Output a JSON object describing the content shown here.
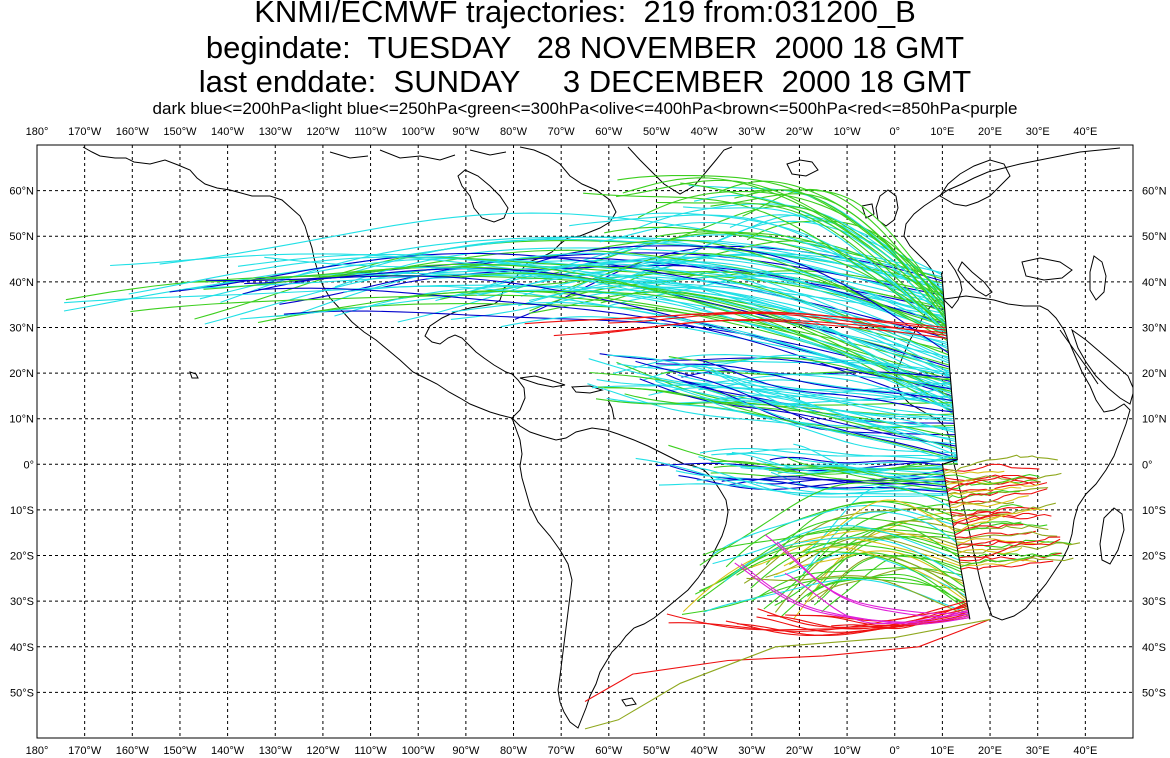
{
  "title": {
    "line1": "KNMI/ECMWF trajectories:  219 from:031200_B",
    "line2": "begindate:  TUESDAY   28 NOVEMBER  2000 18 GMT",
    "line3": "last enddate:  SUNDAY     3 DECEMBER  2000 18 GMT"
  },
  "legend": "dark blue<=200hPa<light blue<=250hPa<green<=300hPa<olive<=400hPa<brown<=500hPa<red<=850hPa<purple",
  "colors": {
    "dark_blue": "#0000cc",
    "light_blue": "#22e0e6",
    "green": "#3ccf1e",
    "olive": "#8fa81e",
    "brown": "#d9c21a",
    "red": "#ee1111",
    "purple": "#e020d8",
    "grid": "#000000",
    "coast": "#000000"
  },
  "map": {
    "projection": "cylindrical",
    "lon_range": [
      -180,
      50
    ],
    "lat_range": [
      -60,
      70
    ],
    "grid_step_deg": 10,
    "lon_labels": [
      "180°",
      "170°W",
      "160°W",
      "150°W",
      "140°W",
      "130°W",
      "120°W",
      "110°W",
      "100°W",
      "90°W",
      "80°W",
      "70°W",
      "60°W",
      "50°W",
      "40°W",
      "30°W",
      "20°W",
      "10°W",
      "0°",
      "10°E",
      "20°E",
      "30°E",
      "40°E"
    ],
    "lat_labels": [
      "60°N",
      "50°N",
      "40°N",
      "30°N",
      "20°N",
      "10°N",
      "0°",
      "10°S",
      "20°S",
      "30°S",
      "40°S",
      "50°S"
    ],
    "start_longitude_deg": 10
  }
}
